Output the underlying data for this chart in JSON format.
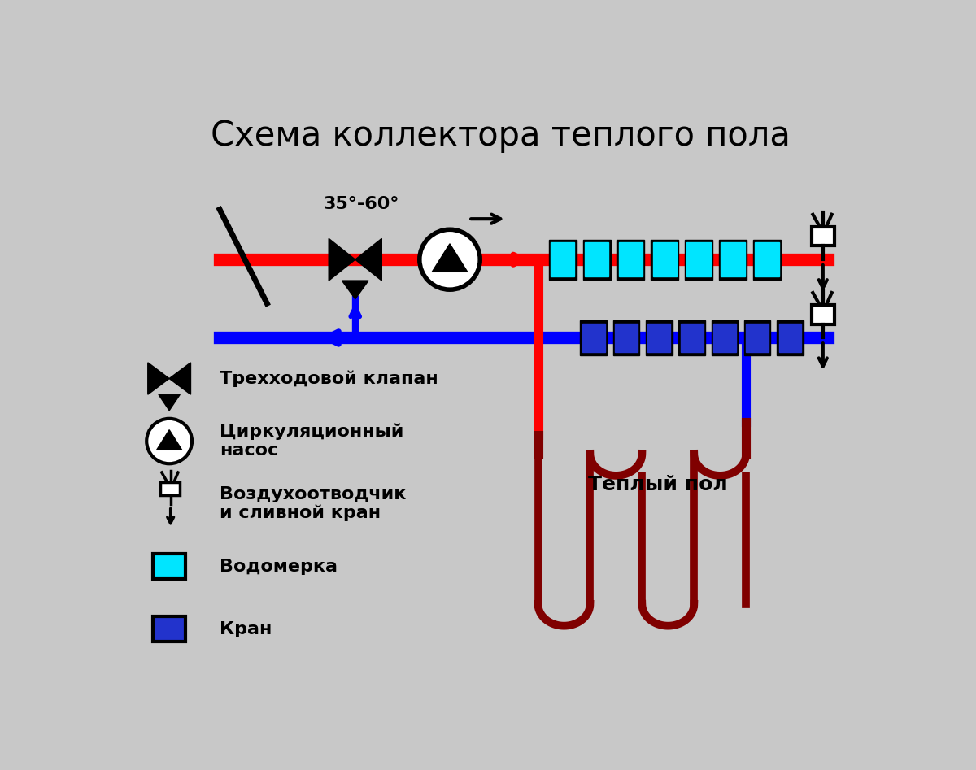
{
  "title": "Схема коллектора теплого пола",
  "bg_color": "#c8c8c8",
  "red": "#ff0000",
  "blue": "#0000ff",
  "dark_red": "#800000",
  "black": "#000000",
  "cyan": "#00e5ff",
  "dark_blue_rect": "#2233cc",
  "white": "#ffffff",
  "legend_items": [
    {
      "text": "Трехходовой клапан"
    },
    {
      "text": "Циркуляционный\nнасос"
    },
    {
      "text": "Воздухоотводчик\nи сливной кран"
    },
    {
      "text": "Водомерка"
    },
    {
      "text": "Кран"
    }
  ],
  "temp_label": "35°-60°",
  "warm_floor_label": "Теплый пол"
}
